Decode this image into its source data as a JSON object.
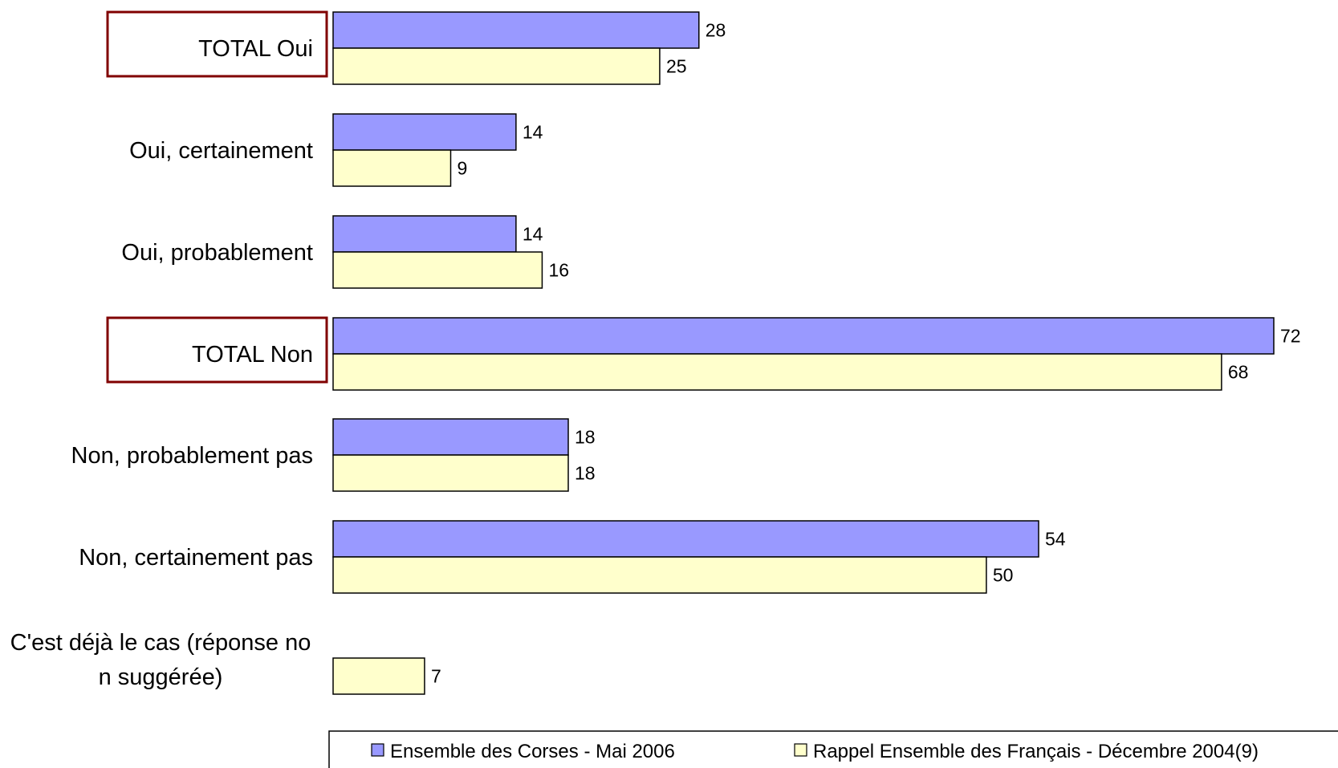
{
  "chart_data": {
    "type": "bar",
    "orientation": "horizontal",
    "categories": [
      "TOTAL Oui",
      "Oui, certainement",
      "Oui, probablement",
      "TOTAL Non",
      "Non, probablement pas",
      "Non, certainement pas",
      "C'est déjà le cas (réponse non suggérée)"
    ],
    "highlighted_categories": [
      "TOTAL Oui",
      "TOTAL Non"
    ],
    "series": [
      {
        "name": "Ensemble des Corses - Mai 2006",
        "color": "#9999FF",
        "values": [
          28,
          14,
          14,
          72,
          18,
          54,
          null
        ]
      },
      {
        "name": "Rappel Ensemble des Français - Décembre 2004(9)",
        "color": "#FFFFCC",
        "values": [
          25,
          9,
          16,
          68,
          18,
          50,
          7
        ]
      }
    ],
    "xlim": [
      0,
      72
    ],
    "grid": false,
    "legend_position": "bottom",
    "highlight_box_color": "#800000"
  }
}
